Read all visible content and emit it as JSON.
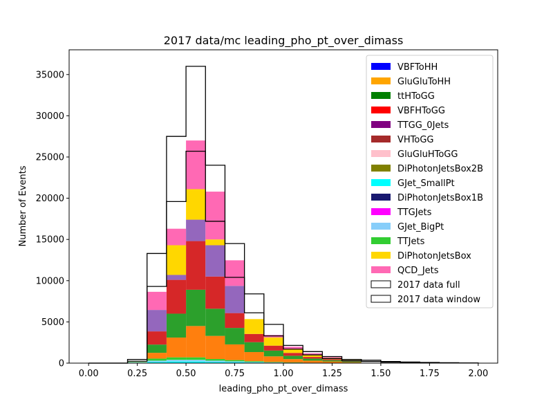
{
  "chart_data": {
    "type": "bar",
    "title": "2017 data/mc leading_pho_pt_over_dimass",
    "xlabel": "leading_pho_pt_over_dimass",
    "ylabel": "Number of Events",
    "xlim": [
      -0.1,
      2.1
    ],
    "ylim": [
      0,
      38000
    ],
    "xticks": [
      "0.00",
      "0.25",
      "0.50",
      "0.75",
      "1.00",
      "1.25",
      "1.50",
      "1.75",
      "2.00"
    ],
    "xtick_values": [
      0,
      0.25,
      0.5,
      0.75,
      1.0,
      1.25,
      1.5,
      1.75,
      2.0
    ],
    "yticks": [
      "0",
      "5000",
      "10000",
      "15000",
      "20000",
      "25000",
      "30000",
      "35000"
    ],
    "ytick_values": [
      0,
      5000,
      10000,
      15000,
      20000,
      25000,
      30000,
      35000
    ],
    "bin_edges": [
      0,
      0.1,
      0.2,
      0.3,
      0.4,
      0.5,
      0.6,
      0.7,
      0.8,
      0.9,
      1.0,
      1.1,
      1.2,
      1.3,
      1.4,
      1.5,
      1.6,
      1.7,
      1.8,
      1.9,
      2.0
    ],
    "legend_position": "top-right",
    "mc_series": [
      {
        "name": "VBFToHH",
        "color": "#0000ff",
        "values": [
          0,
          0,
          0,
          0,
          0,
          0,
          0,
          0,
          0,
          0,
          0,
          0,
          0,
          0,
          0,
          0,
          0,
          0,
          0,
          0
        ]
      },
      {
        "name": "GluGluToHH",
        "color": "#ffa500",
        "values": [
          0,
          0,
          0,
          0,
          0,
          0,
          0,
          0,
          0,
          0,
          0,
          0,
          0,
          0,
          0,
          0,
          0,
          0,
          0,
          0
        ]
      },
      {
        "name": "ttHToGG",
        "color": "#008000",
        "values": [
          0,
          0,
          0,
          0,
          0,
          0,
          0,
          0,
          0,
          0,
          0,
          0,
          0,
          0,
          0,
          0,
          0,
          0,
          0,
          0
        ]
      },
      {
        "name": "VBFHToGG",
        "color": "#ff0000",
        "values": [
          0,
          0,
          0,
          0,
          0,
          0,
          0,
          0,
          0,
          0,
          0,
          0,
          0,
          0,
          0,
          0,
          0,
          0,
          0,
          0
        ]
      },
      {
        "name": "TTGG_0Jets",
        "color": "#800080",
        "values": [
          0,
          0,
          0,
          0,
          0,
          0,
          0,
          0,
          0,
          0,
          0,
          0,
          0,
          0,
          0,
          0,
          0,
          0,
          0,
          0
        ]
      },
      {
        "name": "VHToGG",
        "color": "#a52a2a",
        "values": [
          0,
          0,
          0,
          0,
          0,
          0,
          0,
          0,
          0,
          0,
          0,
          0,
          0,
          0,
          0,
          0,
          0,
          0,
          0,
          0
        ]
      },
      {
        "name": "GluGluHToGG",
        "color": "#ffc0cb",
        "values": [
          0,
          0,
          0,
          0,
          0,
          0,
          0,
          0,
          0,
          0,
          0,
          0,
          0,
          0,
          0,
          0,
          0,
          0,
          0,
          0
        ]
      },
      {
        "name": "DiPhotonJetsBox2B",
        "color": "#808000",
        "values": [
          0,
          0,
          0,
          0,
          0,
          0,
          0,
          0,
          0,
          0,
          0,
          0,
          0,
          0,
          0,
          0,
          0,
          0,
          0,
          0
        ]
      },
      {
        "name": "GJet_SmallPt",
        "color": "#00ffff",
        "values": [
          0,
          0,
          50,
          150,
          200,
          200,
          150,
          120,
          80,
          50,
          30,
          20,
          10,
          5,
          0,
          0,
          0,
          0,
          0,
          0
        ]
      },
      {
        "name": "DiPhotonJetsBox1B",
        "color": "#191970",
        "values": [
          0,
          0,
          0,
          0,
          0,
          0,
          0,
          0,
          0,
          0,
          0,
          0,
          0,
          0,
          0,
          0,
          0,
          0,
          0,
          0
        ]
      },
      {
        "name": "TTGJets",
        "color": "#ff00ff",
        "values": [
          0,
          0,
          0,
          0,
          0,
          0,
          0,
          0,
          0,
          0,
          0,
          0,
          0,
          0,
          0,
          0,
          0,
          0,
          0,
          0
        ]
      },
      {
        "name": "GJet_BigPt",
        "color": "#87cefa",
        "values": [
          0,
          0,
          30,
          150,
          200,
          200,
          150,
          100,
          60,
          30,
          20,
          10,
          5,
          0,
          0,
          0,
          0,
          0,
          0,
          0
        ]
      },
      {
        "name": "TTJets",
        "color": "#32cd32",
        "values": [
          0,
          0,
          50,
          250,
          300,
          300,
          200,
          150,
          100,
          60,
          40,
          20,
          10,
          5,
          0,
          0,
          0,
          0,
          0,
          0
        ]
      },
      {
        "name": "DiPhotonJetsBox",
        "color": "#ffd700",
        "values": [
          0,
          0,
          120,
          700,
          2200,
          3700,
          2700,
          1830,
          1060,
          660,
          360,
          250,
          165,
          115,
          200,
          200,
          100,
          80,
          50,
          30
        ]
      },
      {
        "name": "QCD_Jets",
        "color": "#ff69b4",
        "values": [
          0,
          0,
          0,
          0,
          0,
          0,
          0,
          0,
          0,
          0,
          0,
          0,
          0,
          0,
          0,
          0,
          0,
          0,
          0,
          0
        ]
      }
    ],
    "mc_color_bands": [
      {
        "color": "#ff7f0e",
        "values": [
          0,
          0,
          0,
          700,
          2400,
          3800,
          2800,
          1900,
          1100,
          680,
          400,
          250,
          180,
          100,
          0,
          0,
          0,
          0,
          0,
          0
        ]
      },
      {
        "color": "#2ca02c",
        "values": [
          0,
          0,
          0,
          1000,
          2900,
          4400,
          3300,
          2000,
          1200,
          700,
          400,
          250,
          150,
          100,
          0,
          0,
          0,
          0,
          0,
          0
        ]
      },
      {
        "color": "#d62728",
        "values": [
          0,
          0,
          0,
          1600,
          4100,
          5900,
          3900,
          1800,
          1000,
          600,
          350,
          200,
          120,
          50,
          0,
          0,
          0,
          0,
          0,
          0
        ]
      },
      {
        "color": "#9467bd",
        "values": [
          0,
          0,
          0,
          2600,
          600,
          2600,
          3800,
          3300,
          0,
          0,
          0,
          0,
          0,
          0,
          0,
          0,
          0,
          0,
          0,
          0
        ]
      },
      {
        "color": "#ffd700",
        "values": [
          0,
          0,
          0,
          0,
          3600,
          3700,
          700,
          0,
          1800,
          1000,
          500,
          300,
          150,
          100,
          0,
          0,
          0,
          0,
          0,
          0
        ]
      },
      {
        "color": "#ff69b4",
        "values": [
          0,
          0,
          0,
          2200,
          2000,
          5900,
          5800,
          3100,
          0,
          300,
          250,
          150,
          100,
          0,
          0,
          0,
          0,
          0,
          0,
          0
        ]
      }
    ],
    "data_full": [
      0,
      0,
      450,
      13300,
      27500,
      36000,
      24000,
      14500,
      8400,
      4700,
      2150,
      1400,
      800,
      450,
      350,
      200,
      130,
      80,
      50,
      20
    ],
    "data_window": [
      0,
      0,
      230,
      9300,
      19600,
      25700,
      17200,
      10400,
      6100,
      3300,
      1700,
      1000,
      550,
      300,
      200,
      120,
      80,
      50,
      30,
      10
    ],
    "data_legend": [
      "2017 data full",
      "2017 data window"
    ]
  }
}
